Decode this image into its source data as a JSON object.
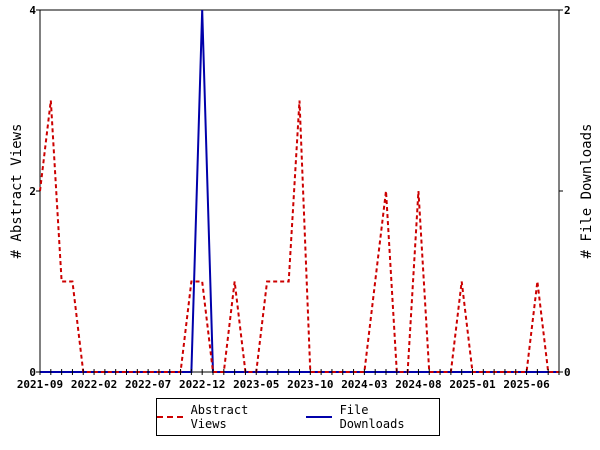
{
  "chart_data": {
    "type": "line",
    "x": [
      "2021-09",
      "2021-10",
      "2021-11",
      "2021-12",
      "2022-01",
      "2022-02",
      "2022-03",
      "2022-04",
      "2022-05",
      "2022-06",
      "2022-07",
      "2022-08",
      "2022-09",
      "2022-10",
      "2022-11",
      "2022-12",
      "2023-01",
      "2023-02",
      "2023-03",
      "2023-04",
      "2023-05",
      "2023-06",
      "2023-07",
      "2023-08",
      "2023-09",
      "2023-10",
      "2023-11",
      "2023-12",
      "2024-01",
      "2024-02",
      "2024-03",
      "2024-04",
      "2024-05",
      "2024-06",
      "2024-07",
      "2024-08",
      "2024-09",
      "2024-10",
      "2024-11",
      "2024-12",
      "2025-01",
      "2025-02",
      "2025-03",
      "2025-04",
      "2025-05",
      "2025-06",
      "2025-07",
      "2025-08",
      "2025-09"
    ],
    "x_tick_labels": [
      "2021-09",
      "2022-02",
      "2022-07",
      "2022-12",
      "2023-05",
      "2023-10",
      "2024-03",
      "2024-08",
      "2025-01",
      "2025-06"
    ],
    "series": [
      {
        "name": "Abstract Views",
        "axis": "left",
        "color": "#cc0000",
        "style": "dashed",
        "values": [
          2,
          3,
          1,
          1,
          0,
          0,
          0,
          0,
          0,
          0,
          0,
          0,
          0,
          0,
          1,
          1,
          0,
          0,
          1,
          0,
          0,
          1,
          1,
          1,
          3,
          0,
          0,
          0,
          0,
          0,
          0,
          1,
          2,
          0,
          0,
          2,
          0,
          0,
          0,
          1,
          0,
          0,
          0,
          0,
          0,
          0,
          1,
          0,
          0
        ]
      },
      {
        "name": "File Downloads",
        "axis": "right",
        "color": "#0000aa",
        "style": "solid",
        "values": [
          0,
          0,
          0,
          0,
          0,
          0,
          0,
          0,
          0,
          0,
          0,
          0,
          0,
          0,
          0,
          2,
          0,
          0,
          0,
          0,
          0,
          0,
          0,
          0,
          0,
          0,
          0,
          0,
          0,
          0,
          0,
          0,
          0,
          0,
          0,
          0,
          0,
          0,
          0,
          0,
          0,
          0,
          0,
          0,
          0,
          0,
          0,
          0,
          0
        ]
      }
    ],
    "ylabel": "# Abstract Views",
    "y2label": "# File Downloads",
    "ylim": [
      0,
      4
    ],
    "y2lim": [
      0,
      2
    ],
    "y_ticks": [
      "0",
      "2",
      "4"
    ],
    "y2_ticks": [
      "0",
      "1",
      "2"
    ],
    "grid": false,
    "legend_position": "bottom"
  }
}
